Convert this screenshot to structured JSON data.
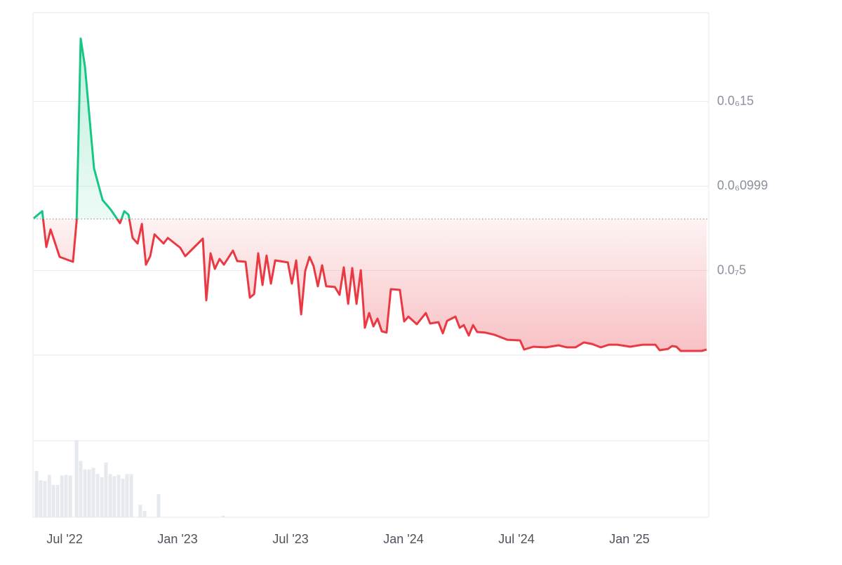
{
  "chart_data": {
    "type": "line",
    "x": [
      2022.363,
      2022.401,
      2022.419,
      2022.438,
      2022.478,
      2022.537,
      2022.553,
      2022.571,
      2022.59,
      2022.63,
      2022.668,
      2022.705,
      2022.745,
      2022.764,
      2022.783,
      2022.801,
      2022.823,
      2022.842,
      2022.86,
      2022.879,
      2022.898,
      2022.938,
      2022.957,
      2023.012,
      2023.034,
      2023.112,
      2023.127,
      2023.146,
      2023.165,
      2023.186,
      2023.205,
      2023.245,
      2023.264,
      2023.301,
      2023.32,
      2023.339,
      2023.357,
      2023.376,
      2023.394,
      2023.413,
      2023.432,
      2023.488,
      2023.506,
      2023.525,
      2023.547,
      2023.565,
      2023.584,
      2023.602,
      2023.621,
      2023.64,
      2023.658,
      2023.696,
      2023.717,
      2023.736,
      2023.755,
      2023.773,
      2023.792,
      2023.811,
      2023.829,
      2023.848,
      2023.867,
      2023.885,
      2023.904,
      2023.925,
      2023.944,
      2023.984,
      2024.003,
      2024.022,
      2024.059,
      2024.099,
      2024.118,
      2024.155,
      2024.174,
      2024.193,
      2024.23,
      2024.249,
      2024.267,
      2024.289,
      2024.308,
      2024.326,
      2024.363,
      2024.404,
      2024.46,
      2024.516,
      2024.534,
      2024.575,
      2024.63,
      2024.686,
      2024.724,
      2024.761,
      2024.798,
      2024.835,
      2024.873,
      2024.91,
      2024.947,
      2025.003,
      2025.059,
      2025.115,
      2025.134,
      2025.171,
      2025.189,
      2025.208,
      2025.227,
      2025.32,
      2025.342
    ],
    "values": [
      8.09e-08,
      8.51e-08,
      6.39e-08,
      7.43e-08,
      5.81e-08,
      5.52e-08,
      7.93e-08,
      1.872e-07,
      1.706e-07,
      1.104e-07,
      9.17e-08,
      8.59e-08,
      7.8e-08,
      8.51e-08,
      8.3e-08,
      6.93e-08,
      6.6e-08,
      7.76e-08,
      5.35e-08,
      5.85e-08,
      7.14e-08,
      6.6e-08,
      6.93e-08,
      6.35e-08,
      5.85e-08,
      6.89e-08,
      3.24e-08,
      6.02e-08,
      5.1e-08,
      5.69e-08,
      5.35e-08,
      6.18e-08,
      5.56e-08,
      5.52e-08,
      3.4e-08,
      3.61e-08,
      6.02e-08,
      4.15e-08,
      5.89e-08,
      4.23e-08,
      5.6e-08,
      5.48e-08,
      4.23e-08,
      5.6e-08,
      2.41e-08,
      4.98e-08,
      5.81e-08,
      5.27e-08,
      4.07e-08,
      5.31e-08,
      4.07e-08,
      4.03e-08,
      3.57e-08,
      5.19e-08,
      3.03e-08,
      5.15e-08,
      3.03e-08,
      5.02e-08,
      1.62e-08,
      2.49e-08,
      1.7e-08,
      2.16e-08,
      1.41e-08,
      1.33e-08,
      3.9e-08,
      3.86e-08,
      1.99e-08,
      2.28e-08,
      1.83e-08,
      2.49e-08,
      1.87e-08,
      1.95e-08,
      1.29e-08,
      2.03e-08,
      2.28e-08,
      1.62e-08,
      1.78e-08,
      1.16e-08,
      1.78e-08,
      1.37e-08,
      1.33e-08,
      1.2e-08,
      9.1e-09,
      8.7e-09,
      3.3e-09,
      5e-09,
      4.6e-09,
      5.8e-09,
      4.6e-09,
      4.6e-09,
      7.5e-09,
      6.6e-09,
      4.6e-09,
      6.2e-09,
      6.2e-09,
      5e-09,
      6.2e-09,
      6.2e-09,
      2.9e-09,
      3.7e-09,
      5.4e-09,
      5e-09,
      2.5e-09,
      2.5e-09,
      3.3e-09
    ],
    "color_up": "#16c784",
    "color_down": "#ea3943",
    "baseline": 8.05e-08,
    "xlim": [
      2022.363,
      2025.351
    ],
    "xticks": [
      {
        "value": 2022.5,
        "label": "Jul '22"
      },
      {
        "value": 2023.0,
        "label": "Jan '23"
      },
      {
        "value": 2023.5,
        "label": "Jul '23"
      },
      {
        "value": 2024.0,
        "label": "Jan '24"
      },
      {
        "value": 2024.5,
        "label": "Jul '24"
      },
      {
        "value": 2025.0,
        "label": "Jan '25"
      }
    ],
    "ylim": [
      0,
      2.025e-07
    ],
    "yticks": [
      {
        "value": 1.5e-07,
        "label": "0.0₆15"
      },
      {
        "value": 9.99e-08,
        "label": "0.0₆0999"
      },
      {
        "value": 5e-08,
        "label": "0.0₇5"
      }
    ],
    "grid": true,
    "volume": {
      "x": [
        2022.376,
        2022.394,
        2022.413,
        2022.432,
        2022.45,
        2022.469,
        2022.488,
        2022.506,
        2022.525,
        2022.553,
        2022.571,
        2022.59,
        2022.609,
        2022.627,
        2022.646,
        2022.665,
        2022.683,
        2022.702,
        2022.72,
        2022.739,
        2022.758,
        2022.776,
        2022.795,
        2022.835,
        2022.854,
        2022.916,
        2023.202
      ],
      "values": [
        60,
        48,
        47,
        55,
        42,
        42,
        54,
        55,
        54,
        100,
        73,
        62,
        62,
        64,
        56,
        52,
        71,
        56,
        53,
        55,
        50,
        56,
        56,
        16,
        8,
        30,
        2
      ],
      "ylim": [
        0,
        110
      ],
      "color": "#e6eaef"
    }
  }
}
